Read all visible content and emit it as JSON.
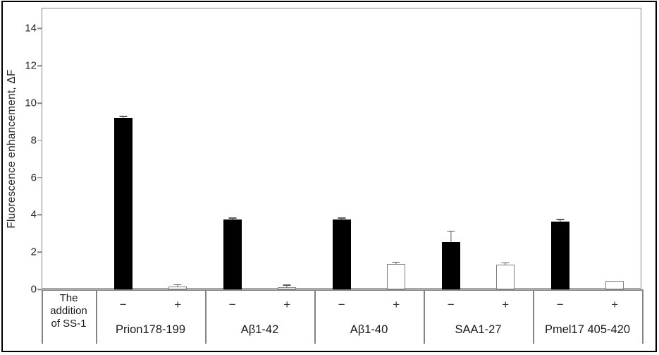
{
  "chart_data": {
    "type": "bar",
    "title": "",
    "ylabel": "Fluorescence enhancement, ΔF",
    "xlabel": "",
    "ylim": [
      0,
      15.1
    ],
    "yticks": [
      0,
      2,
      4,
      6,
      8,
      10,
      12,
      14
    ],
    "grid": false,
    "legend_position": "none",
    "categories": [
      "Prion178-199",
      "Aβ1-42",
      "Aβ1-40",
      "SAA1-27",
      "Pmel17 405-420"
    ],
    "row_header": {
      "line1": "The addition",
      "line2": "of SS-1"
    },
    "series": [
      {
        "name": "−",
        "fill": "#000000",
        "values": [
          9.2,
          3.75,
          3.75,
          2.55,
          3.65
        ],
        "errors": [
          0.1,
          0.1,
          0.1,
          0.6,
          0.12
        ]
      },
      {
        "name": "+",
        "fill": "#ffffff",
        "values": [
          0.15,
          0.12,
          1.35,
          1.33,
          0.45
        ],
        "errors": [
          0.12,
          0.13,
          0.13,
          0.12,
          0
        ]
      }
    ],
    "colors": {
      "bar_black": "#000000",
      "bar_white_border": "#7f7f7f",
      "axis": "#848484",
      "text": "#262626",
      "error": "#5a5a5a",
      "outer_border": "#000000"
    }
  }
}
